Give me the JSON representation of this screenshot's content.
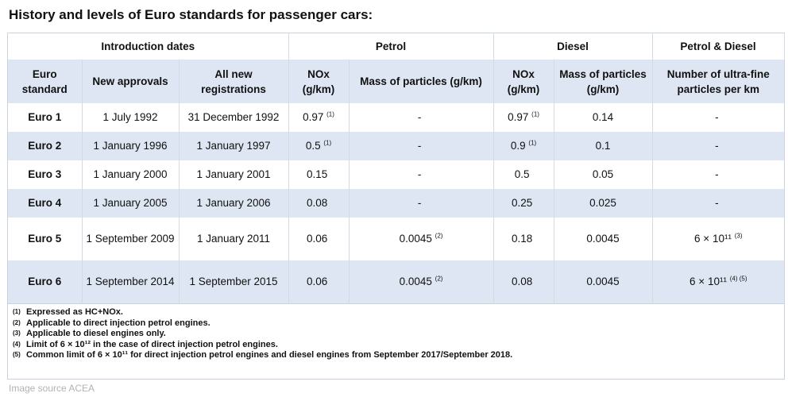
{
  "title": "History and levels of Euro standards for passenger cars:",
  "group_headers": [
    "Introduction dates",
    "Petrol",
    "Diesel",
    "Petrol & Diesel"
  ],
  "column_headers": [
    "Euro standard",
    "New approvals",
    "All new registrations",
    "NOx (g/km)",
    "Mass of particles (g/km)",
    "NOx (g/km)",
    "Mass of particles (g/km)",
    "Number of ultra-fine particles per km"
  ],
  "rows": [
    {
      "std": "Euro 1",
      "new_approvals": "1 July 1992",
      "all_reg": "31 December 1992",
      "petrol_nox": "0.97",
      "petrol_nox_note": "(1)",
      "petrol_pm": "-",
      "petrol_pm_note": "",
      "diesel_nox": "0.97",
      "diesel_nox_note": "(1)",
      "diesel_pm": "0.14",
      "pn": "-",
      "pn_note": ""
    },
    {
      "std": "Euro 2",
      "new_approvals": "1 January 1996",
      "all_reg": "1 January 1997",
      "petrol_nox": "0.5",
      "petrol_nox_note": "(1)",
      "petrol_pm": "-",
      "petrol_pm_note": "",
      "diesel_nox": "0.9",
      "diesel_nox_note": "(1)",
      "diesel_pm": "0.1",
      "pn": "-",
      "pn_note": ""
    },
    {
      "std": "Euro 3",
      "new_approvals": "1 January 2000",
      "all_reg": "1 January 2001",
      "petrol_nox": "0.15",
      "petrol_nox_note": "",
      "petrol_pm": "-",
      "petrol_pm_note": "",
      "diesel_nox": "0.5",
      "diesel_nox_note": "",
      "diesel_pm": "0.05",
      "pn": "-",
      "pn_note": ""
    },
    {
      "std": "Euro 4",
      "new_approvals": "1 January 2005",
      "all_reg": "1 January 2006",
      "petrol_nox": "0.08",
      "petrol_nox_note": "",
      "petrol_pm": "-",
      "petrol_pm_note": "",
      "diesel_nox": "0.25",
      "diesel_nox_note": "",
      "diesel_pm": "0.025",
      "pn": "-",
      "pn_note": ""
    },
    {
      "std": "Euro 5",
      "new_approvals": "1 September 2009",
      "all_reg": "1 January 2011",
      "petrol_nox": "0.06",
      "petrol_nox_note": "",
      "petrol_pm": "0.0045",
      "petrol_pm_note": "(2)",
      "diesel_nox": "0.18",
      "diesel_nox_note": "",
      "diesel_pm": "0.0045",
      "pn": "6 × 10¹¹",
      "pn_note": "(3)"
    },
    {
      "std": "Euro 6",
      "new_approvals": "1 September 2014",
      "all_reg": "1 September 2015",
      "petrol_nox": "0.06",
      "petrol_nox_note": "",
      "petrol_pm": "0.0045",
      "petrol_pm_note": "(2)",
      "diesel_nox": "0.08",
      "diesel_nox_note": "",
      "diesel_pm": "0.0045",
      "pn": "6 × 10¹¹",
      "pn_note": "(4) (5)"
    }
  ],
  "footnotes": [
    {
      "num": "(1)",
      "text": "Expressed as HC+NOx."
    },
    {
      "num": "(2)",
      "text": "Applicable to direct injection petrol engines."
    },
    {
      "num": "(3)",
      "text": "Applicable to diesel engines only."
    },
    {
      "num": "(4)",
      "text": "Limit of 6 × 10¹² in the case of direct injection petrol engines."
    },
    {
      "num": "(5)",
      "text": "Common limit of 6 × 10¹¹ for direct injection petrol engines and diesel engines from September 2017/September 2018."
    }
  ],
  "source": "Image source ACEA"
}
